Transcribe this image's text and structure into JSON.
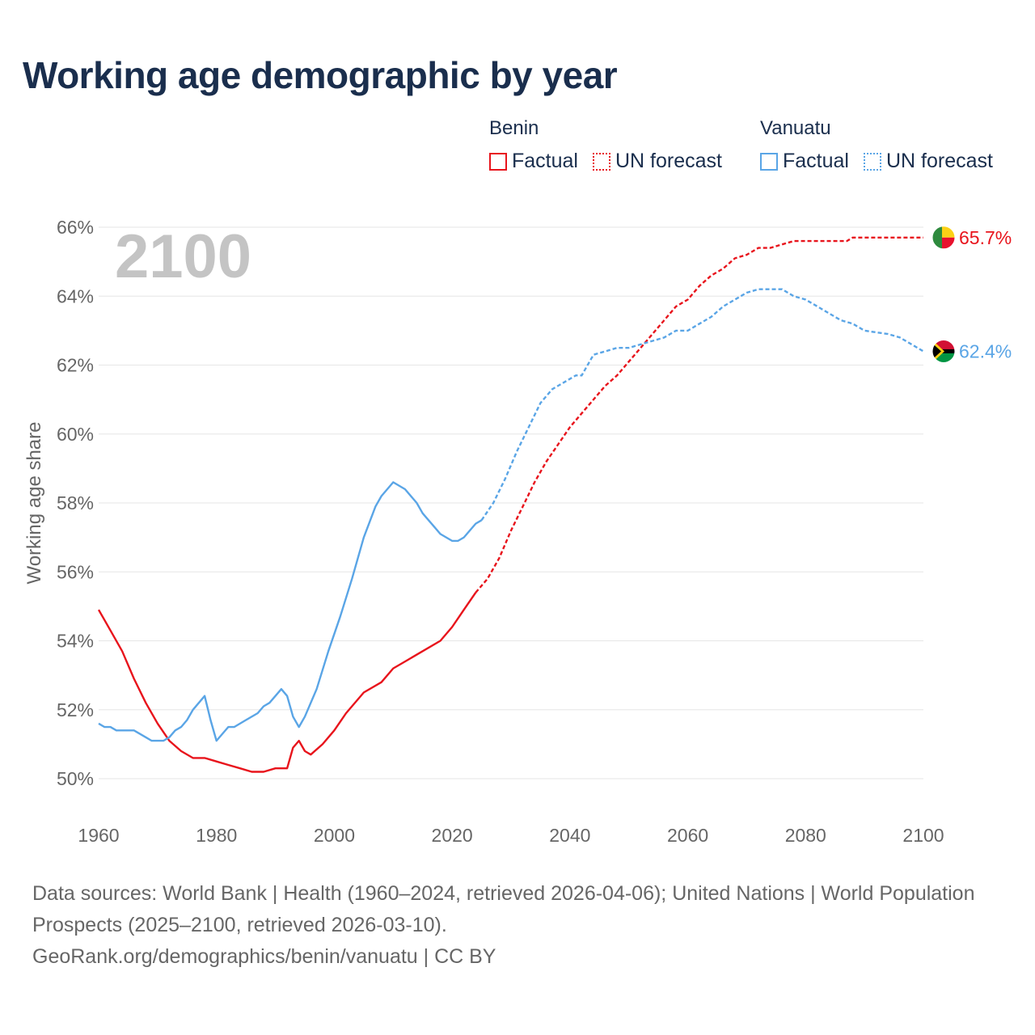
{
  "title": "Working age demographic by year",
  "colors": {
    "benin": "#e8141c",
    "vanuatu": "#5aa5e6",
    "title": "#1a2e4d",
    "grid": "#e6e6e6",
    "text": "#666666",
    "year": "#c4c4c4"
  },
  "legend": {
    "benin": {
      "name": "Benin",
      "factual": "Factual",
      "forecast": "UN forecast"
    },
    "vanuatu": {
      "name": "Vanuatu",
      "factual": "Factual",
      "forecast": "UN forecast"
    }
  },
  "icons": {
    "benin_flag": "benin-flag-icon",
    "vanuatu_flag": "vanuatu-flag-icon"
  },
  "footer": {
    "sources": "Data sources: World Bank | Health (1960–2024, retrieved 2026-04-06); United Nations | World Population Prospects (2025–2100, retrieved 2026-03-10).",
    "link": "GeoRank.org/demographics/benin/vanuatu | CC BY"
  },
  "chart_data": {
    "type": "line",
    "title": "Working age demographic by year",
    "ylabel": "Working age share",
    "xlabel": "",
    "xlim": [
      1960,
      2100
    ],
    "ylim": [
      49,
      66.5
    ],
    "x_ticks": [
      1960,
      1980,
      2000,
      2020,
      2040,
      2060,
      2080,
      2100
    ],
    "y_ticks": [
      50,
      52,
      54,
      56,
      58,
      60,
      62,
      64,
      66
    ],
    "y_tick_labels": [
      "50%",
      "52%",
      "54%",
      "56%",
      "58%",
      "60%",
      "62%",
      "64%",
      "66%"
    ],
    "year_label": "2100",
    "grid": true,
    "series": [
      {
        "name": "Benin",
        "key": "benin",
        "end_label": "65.7%",
        "factual": [
          [
            1960,
            54.9
          ],
          [
            1962,
            54.3
          ],
          [
            1964,
            53.7
          ],
          [
            1966,
            52.9
          ],
          [
            1968,
            52.2
          ],
          [
            1970,
            51.6
          ],
          [
            1972,
            51.1
          ],
          [
            1974,
            50.8
          ],
          [
            1976,
            50.6
          ],
          [
            1978,
            50.6
          ],
          [
            1980,
            50.5
          ],
          [
            1982,
            50.4
          ],
          [
            1984,
            50.3
          ],
          [
            1986,
            50.2
          ],
          [
            1988,
            50.2
          ],
          [
            1990,
            50.3
          ],
          [
            1992,
            50.3
          ],
          [
            1993,
            50.9
          ],
          [
            1994,
            51.1
          ],
          [
            1995,
            50.8
          ],
          [
            1996,
            50.7
          ],
          [
            1998,
            51.0
          ],
          [
            2000,
            51.4
          ],
          [
            2002,
            51.9
          ],
          [
            2005,
            52.5
          ],
          [
            2008,
            52.8
          ],
          [
            2010,
            53.2
          ],
          [
            2012,
            53.4
          ],
          [
            2015,
            53.7
          ],
          [
            2018,
            54.0
          ],
          [
            2020,
            54.4
          ],
          [
            2022,
            54.9
          ],
          [
            2024,
            55.4
          ]
        ],
        "forecast": [
          [
            2024,
            55.4
          ],
          [
            2026,
            55.8
          ],
          [
            2028,
            56.4
          ],
          [
            2030,
            57.2
          ],
          [
            2032,
            57.9
          ],
          [
            2034,
            58.6
          ],
          [
            2036,
            59.2
          ],
          [
            2038,
            59.7
          ],
          [
            2040,
            60.2
          ],
          [
            2042,
            60.6
          ],
          [
            2044,
            61.0
          ],
          [
            2046,
            61.4
          ],
          [
            2048,
            61.7
          ],
          [
            2050,
            62.1
          ],
          [
            2052,
            62.5
          ],
          [
            2054,
            62.9
          ],
          [
            2056,
            63.3
          ],
          [
            2058,
            63.7
          ],
          [
            2060,
            63.9
          ],
          [
            2062,
            64.3
          ],
          [
            2064,
            64.6
          ],
          [
            2066,
            64.8
          ],
          [
            2068,
            65.1
          ],
          [
            2070,
            65.2
          ],
          [
            2072,
            65.4
          ],
          [
            2074,
            65.4
          ],
          [
            2076,
            65.5
          ],
          [
            2078,
            65.6
          ],
          [
            2080,
            65.6
          ],
          [
            2087,
            65.6
          ],
          [
            2088,
            65.7
          ],
          [
            2100,
            65.7
          ]
        ]
      },
      {
        "name": "Vanuatu",
        "key": "vanuatu",
        "end_label": "62.4%",
        "factual": [
          [
            1960,
            51.6
          ],
          [
            1961,
            51.5
          ],
          [
            1962,
            51.5
          ],
          [
            1963,
            51.4
          ],
          [
            1966,
            51.4
          ],
          [
            1968,
            51.2
          ],
          [
            1969,
            51.1
          ],
          [
            1971,
            51.1
          ],
          [
            1972,
            51.2
          ],
          [
            1973,
            51.4
          ],
          [
            1974,
            51.5
          ],
          [
            1975,
            51.7
          ],
          [
            1976,
            52.0
          ],
          [
            1977,
            52.2
          ],
          [
            1978,
            52.4
          ],
          [
            1979,
            51.7
          ],
          [
            1980,
            51.1
          ],
          [
            1981,
            51.3
          ],
          [
            1982,
            51.5
          ],
          [
            1983,
            51.5
          ],
          [
            1985,
            51.7
          ],
          [
            1987,
            51.9
          ],
          [
            1988,
            52.1
          ],
          [
            1989,
            52.2
          ],
          [
            1990,
            52.4
          ],
          [
            1991,
            52.6
          ],
          [
            1992,
            52.4
          ],
          [
            1993,
            51.8
          ],
          [
            1994,
            51.5
          ],
          [
            1995,
            51.8
          ],
          [
            1997,
            52.6
          ],
          [
            1999,
            53.7
          ],
          [
            2001,
            54.7
          ],
          [
            2003,
            55.8
          ],
          [
            2005,
            57.0
          ],
          [
            2007,
            57.9
          ],
          [
            2008,
            58.2
          ],
          [
            2010,
            58.6
          ],
          [
            2012,
            58.4
          ],
          [
            2014,
            58.0
          ],
          [
            2015,
            57.7
          ],
          [
            2017,
            57.3
          ],
          [
            2018,
            57.1
          ],
          [
            2020,
            56.9
          ],
          [
            2021,
            56.9
          ],
          [
            2022,
            57.0
          ],
          [
            2024,
            57.4
          ],
          [
            2025,
            57.5
          ]
        ],
        "forecast": [
          [
            2025,
            57.5
          ],
          [
            2027,
            58.0
          ],
          [
            2029,
            58.7
          ],
          [
            2031,
            59.5
          ],
          [
            2033,
            60.2
          ],
          [
            2035,
            60.9
          ],
          [
            2037,
            61.3
          ],
          [
            2039,
            61.5
          ],
          [
            2041,
            61.7
          ],
          [
            2042,
            61.7
          ],
          [
            2044,
            62.3
          ],
          [
            2046,
            62.4
          ],
          [
            2048,
            62.5
          ],
          [
            2050,
            62.5
          ],
          [
            2052,
            62.6
          ],
          [
            2056,
            62.8
          ],
          [
            2058,
            63.0
          ],
          [
            2060,
            63.0
          ],
          [
            2062,
            63.2
          ],
          [
            2064,
            63.4
          ],
          [
            2066,
            63.7
          ],
          [
            2068,
            63.9
          ],
          [
            2070,
            64.1
          ],
          [
            2072,
            64.2
          ],
          [
            2076,
            64.2
          ],
          [
            2078,
            64.0
          ],
          [
            2080,
            63.9
          ],
          [
            2082,
            63.7
          ],
          [
            2084,
            63.5
          ],
          [
            2086,
            63.3
          ],
          [
            2088,
            63.2
          ],
          [
            2090,
            63.0
          ],
          [
            2094,
            62.9
          ],
          [
            2096,
            62.8
          ],
          [
            2098,
            62.6
          ],
          [
            2100,
            62.4
          ]
        ]
      }
    ]
  }
}
